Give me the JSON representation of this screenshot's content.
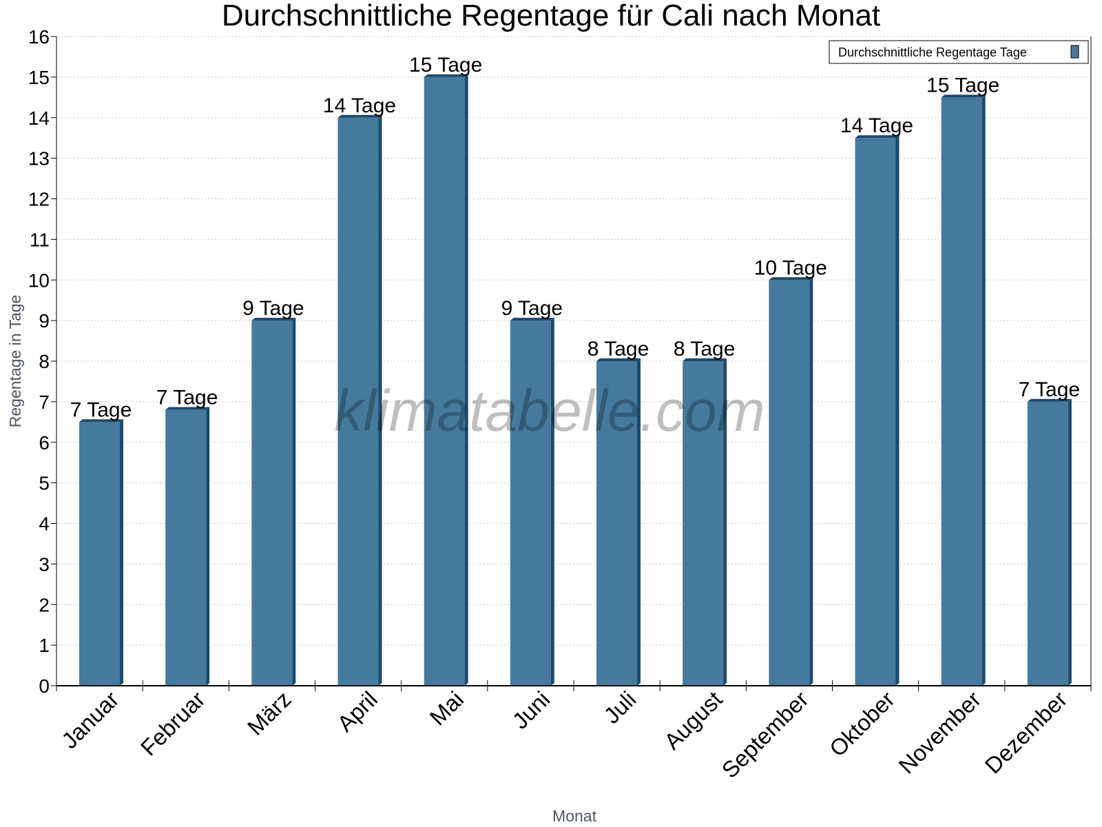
{
  "chart_data": {
    "type": "bar",
    "title": "Durchschnittliche Regentage für Cali nach Monat",
    "xlabel": "Monat",
    "ylabel": "Regentage in Tage",
    "ylim": [
      0,
      16
    ],
    "yticks": [
      0,
      1,
      2,
      3,
      4,
      5,
      6,
      7,
      8,
      9,
      10,
      11,
      12,
      13,
      14,
      15,
      16
    ],
    "grid": true,
    "legend_position": "top-right",
    "categories": [
      "Januar",
      "Februar",
      "März",
      "April",
      "Mai",
      "Juni",
      "Juli",
      "August",
      "September",
      "Oktober",
      "November",
      "Dezember"
    ],
    "series": [
      {
        "name": "Durchschnittliche Regentage Tage",
        "values": [
          6.5,
          6.8,
          9,
          14,
          15,
          9,
          8,
          8,
          10,
          13.5,
          14.5,
          7
        ],
        "labels": [
          "7 Tage",
          "7 Tage",
          "9 Tage",
          "14 Tage",
          "15 Tage",
          "9 Tage",
          "8 Tage",
          "8 Tage",
          "10 Tage",
          "14 Tage",
          "15 Tage",
          "7 Tage"
        ],
        "color": "#467a9c",
        "side_color": "#1c4a6b"
      }
    ],
    "watermark": "klimatabelle.com"
  }
}
